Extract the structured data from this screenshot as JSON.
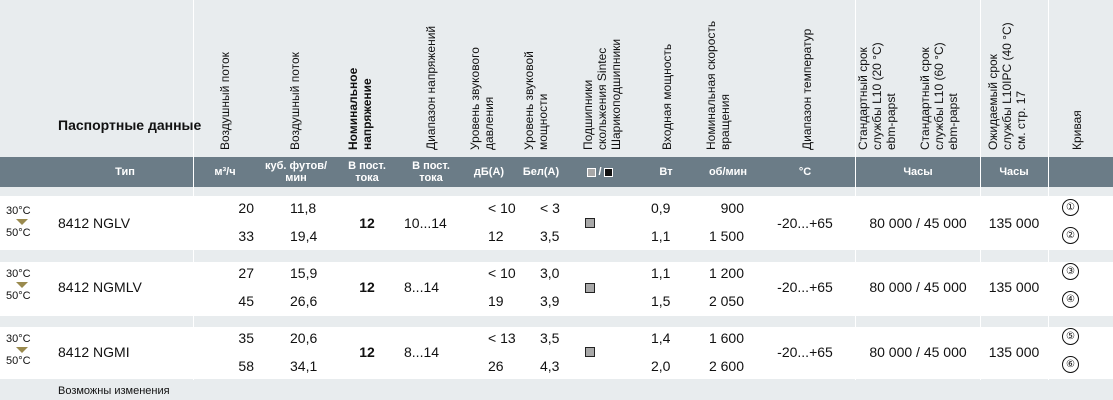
{
  "title": "Паспортные данные",
  "headers": {
    "airflow_m3": "Воздушный поток",
    "airflow_cfm": "Воздушный поток",
    "nominal_voltage": [
      "Номинальное",
      "напряжение"
    ],
    "voltage_range": "Диапазон напряжений",
    "sound_pressure": [
      "Уровень звукового",
      "давления"
    ],
    "sound_power": [
      "Уровень звуковой",
      "мощности"
    ],
    "bearings": [
      "Подшипники",
      "скольжения Sintec",
      "Шарикоподшипники"
    ],
    "input_power": "Входная мощность",
    "speed": [
      "Номинальная скорость",
      "вращения"
    ],
    "temp_range": "Диапазон температур",
    "life_20": [
      "Стандартный срок",
      "службы L10 (20 °C)",
      "ebm-papst"
    ],
    "life_60": [
      "Стандартный срок",
      "службы L10 (60 °C)",
      "ebm-papst"
    ],
    "life_ipc": [
      "Ожидаемый срок",
      "службы L10IPC (40 °C)",
      "см. стр. 17"
    ],
    "curve": "Кривая"
  },
  "units": {
    "type": "Тип",
    "airflow_m3": "м³/ч",
    "airflow_cfm": "куб. футов/ мин",
    "nominal_voltage": "В пост. тока",
    "voltage_range": "В пост. тока",
    "sound_pressure": "дБ(А)",
    "sound_power": "Бел(А)",
    "bearings_sep": "/",
    "input_power": "Вт",
    "speed": "об/мин",
    "temp": "°C",
    "life_std": "Часы",
    "life_ipc": "Часы"
  },
  "temp_labels": {
    "low": "30°C",
    "high": "50°C"
  },
  "products": [
    {
      "type": "8412 NGLV",
      "voltage": "12",
      "range": "10...14",
      "temp_range": "-20...+65",
      "life_std": "80 000 / 45 000",
      "life_ipc": "135 000",
      "rows": [
        {
          "m3h": "20",
          "cfm": "11,8",
          "db": "< 10",
          "bel": "< 3",
          "w": "0,9",
          "rpm": "900",
          "curve": "①"
        },
        {
          "m3h": "33",
          "cfm": "19,4",
          "db": "12",
          "bel": "3,5",
          "w": "1,1",
          "rpm": "1 500",
          "curve": "②"
        }
      ]
    },
    {
      "type": "8412 NGMLV",
      "voltage": "12",
      "range": "8...14",
      "temp_range": "-20...+65",
      "life_std": "80 000 / 45 000",
      "life_ipc": "135 000",
      "rows": [
        {
          "m3h": "27",
          "cfm": "15,9",
          "db": "< 10",
          "bel": "3,0",
          "w": "1,1",
          "rpm": "1 200",
          "curve": "③"
        },
        {
          "m3h": "45",
          "cfm": "26,6",
          "db": "19",
          "bel": "3,9",
          "w": "1,5",
          "rpm": "2 050",
          "curve": "④"
        }
      ]
    },
    {
      "type": "8412 NGMI",
      "voltage": "12",
      "range": "8...14",
      "temp_range": "-20...+65",
      "life_std": "80 000 / 45 000",
      "life_ipc": "135 000",
      "rows": [
        {
          "m3h": "35",
          "cfm": "20,6",
          "db": "< 13",
          "bel": "3,5",
          "w": "1,4",
          "rpm": "1 600",
          "curve": "⑤"
        },
        {
          "m3h": "58",
          "cfm": "34,1",
          "db": "26",
          "bel": "4,3",
          "w": "2,0",
          "rpm": "2 600",
          "curve": "⑥"
        }
      ]
    }
  ],
  "footnote": "Возможны изменения",
  "colors": {
    "header_bar": "#6b7c87",
    "background": "#e8ecee",
    "row": "#ffffff",
    "triangle": "#9a8a4e"
  }
}
